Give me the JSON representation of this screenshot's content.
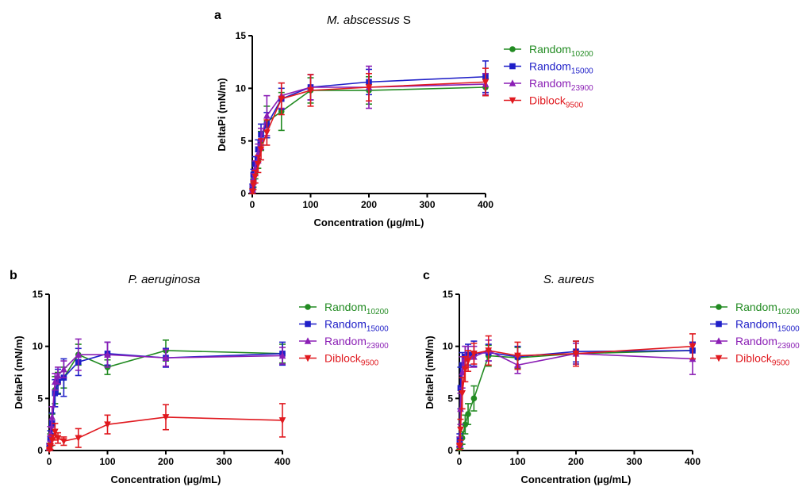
{
  "chart_data": [
    {
      "type": "line",
      "panel_label": "a",
      "title": "M. abscessus S",
      "title_italic": "M. abscessus",
      "title_rest": " S",
      "xlabel": "Concentration (µg/mL)",
      "ylabel": "DeltaPi (mN/m)",
      "xlim": [
        0,
        400
      ],
      "ylim": [
        0,
        15
      ],
      "xticks": [
        0,
        100,
        200,
        300,
        400
      ],
      "yticks": [
        0,
        5,
        10,
        15
      ],
      "grid": false,
      "legend_position": "right",
      "series": [
        {
          "name": "Random10200",
          "base": "Random",
          "sub": "10200",
          "color": "#228b22",
          "marker": "circle",
          "x": [
            0.5,
            2,
            5,
            10,
            15,
            25,
            50,
            100,
            200,
            400
          ],
          "y": [
            0.3,
            1.0,
            2.0,
            3.2,
            5.0,
            6.8,
            7.8,
            9.8,
            9.8,
            10.1
          ],
          "err": [
            0.2,
            0.4,
            0.6,
            0.8,
            0.9,
            1.5,
            1.8,
            1.2,
            1.3,
            0.8
          ]
        },
        {
          "name": "Random15000",
          "base": "Random",
          "sub": "15000",
          "color": "#1f1fc8",
          "marker": "square",
          "x": [
            0.5,
            2,
            5,
            10,
            15,
            25,
            50,
            100,
            200,
            400
          ],
          "y": [
            0.6,
            1.8,
            2.8,
            4.2,
            5.6,
            6.5,
            9.0,
            10.1,
            10.6,
            11.1
          ],
          "err": [
            0.3,
            0.5,
            0.7,
            0.9,
            1.0,
            1.2,
            1.0,
            1.2,
            1.2,
            1.5
          ]
        },
        {
          "name": "Random23900",
          "base": "Random",
          "sub": "23900",
          "color": "#8b1fb5",
          "marker": "triangle-up",
          "x": [
            0.5,
            2,
            5,
            10,
            15,
            25,
            50,
            100,
            200,
            400
          ],
          "y": [
            0.4,
            1.4,
            2.4,
            3.8,
            5.2,
            7.4,
            9.3,
            10.1,
            10.1,
            10.4
          ],
          "err": [
            0.3,
            0.5,
            0.7,
            0.9,
            1.0,
            1.9,
            1.2,
            1.2,
            2.0,
            1.0
          ]
        },
        {
          "name": "Diblock9500",
          "base": "Diblock",
          "sub": "9500",
          "color": "#e0191f",
          "marker": "triangle-down",
          "x": [
            0.5,
            2,
            5,
            10,
            15,
            25,
            50,
            100,
            200,
            400
          ],
          "y": [
            0.2,
            0.8,
            1.6,
            2.8,
            4.2,
            5.8,
            9.0,
            9.8,
            10.1,
            10.6
          ],
          "err": [
            0.2,
            0.4,
            0.6,
            0.8,
            1.0,
            1.2,
            1.5,
            1.5,
            1.3,
            1.3
          ]
        }
      ]
    },
    {
      "type": "line",
      "panel_label": "b",
      "title": "P. aeruginosa",
      "title_italic": "P. aeruginosa",
      "title_rest": "",
      "xlabel": "Concentration (µg/mL)",
      "ylabel": "DeltaPi (mN/m)",
      "xlim": [
        0,
        400
      ],
      "ylim": [
        0,
        15
      ],
      "xticks": [
        0,
        100,
        200,
        300,
        400
      ],
      "yticks": [
        0,
        5,
        10,
        15
      ],
      "grid": false,
      "legend_position": "right",
      "series": [
        {
          "name": "Random10200",
          "base": "Random",
          "sub": "10200",
          "color": "#228b22",
          "marker": "circle",
          "x": [
            0.5,
            2,
            5,
            10,
            15,
            25,
            50,
            100,
            200,
            400
          ],
          "y": [
            0.2,
            1.0,
            2.5,
            5.8,
            6.5,
            7.0,
            9.2,
            8.0,
            9.6,
            9.3
          ],
          "err": [
            0.2,
            0.6,
            1.0,
            1.3,
            1.0,
            1.0,
            1.0,
            0.7,
            1.0,
            0.9
          ]
        },
        {
          "name": "Random15000",
          "base": "Random",
          "sub": "15000",
          "color": "#1f1fc8",
          "marker": "square",
          "x": [
            0.5,
            2,
            5,
            10,
            15,
            25,
            50,
            100,
            200,
            400
          ],
          "y": [
            0.4,
            1.2,
            2.6,
            5.5,
            6.6,
            7.0,
            8.5,
            9.3,
            8.9,
            9.3
          ],
          "err": [
            0.3,
            0.7,
            1.0,
            1.3,
            1.2,
            1.8,
            1.3,
            1.1,
            0.9,
            1.1
          ]
        },
        {
          "name": "Random23900",
          "base": "Random",
          "sub": "23900",
          "color": "#8b1fb5",
          "marker": "triangle-up",
          "x": [
            0.5,
            2,
            5,
            10,
            15,
            25,
            50,
            100,
            200,
            400
          ],
          "y": [
            0.3,
            1.6,
            3.2,
            6.6,
            7.2,
            7.8,
            9.2,
            9.2,
            8.9,
            9.1
          ],
          "err": [
            0.3,
            0.7,
            1.0,
            0.8,
            0.8,
            0.8,
            1.5,
            1.2,
            0.8,
            0.8
          ]
        },
        {
          "name": "Diblock9500",
          "base": "Diblock",
          "sub": "9500",
          "color": "#e0191f",
          "marker": "triangle-down",
          "x": [
            0.5,
            2,
            5,
            10,
            15,
            25,
            50,
            100,
            200,
            400
          ],
          "y": [
            0.1,
            0.4,
            1.0,
            1.8,
            1.2,
            0.9,
            1.2,
            2.5,
            3.2,
            2.9
          ],
          "err": [
            0.1,
            0.3,
            0.5,
            0.8,
            0.5,
            0.4,
            0.9,
            0.9,
            1.2,
            1.6
          ]
        }
      ]
    },
    {
      "type": "line",
      "panel_label": "c",
      "title": "S. aureus",
      "title_italic": "S. aureus",
      "title_rest": "",
      "xlabel": "Concentration (µg/mL)",
      "ylabel": "DeltaPi (mN/m)",
      "xlim": [
        0,
        400
      ],
      "ylim": [
        0,
        15
      ],
      "xticks": [
        0,
        100,
        200,
        300,
        400
      ],
      "yticks": [
        0,
        5,
        10,
        15
      ],
      "grid": false,
      "legend_position": "right",
      "series": [
        {
          "name": "Random10200",
          "base": "Random",
          "sub": "10200",
          "color": "#228b22",
          "marker": "circle",
          "x": [
            0.5,
            2,
            5,
            10,
            15,
            25,
            50,
            100,
            200,
            400
          ],
          "y": [
            0.2,
            0.6,
            1.2,
            2.5,
            3.5,
            5.0,
            9.1,
            8.9,
            9.3,
            9.6
          ],
          "err": [
            0.1,
            0.4,
            0.6,
            0.9,
            1.0,
            1.2,
            1.0,
            1.0,
            1.0,
            0.8
          ]
        },
        {
          "name": "Random15000",
          "base": "Random",
          "sub": "15000",
          "color": "#1f1fc8",
          "marker": "square",
          "x": [
            0.5,
            2,
            5,
            10,
            15,
            25,
            50,
            100,
            200,
            400
          ],
          "y": [
            1.0,
            6.0,
            8.2,
            9.0,
            9.2,
            9.3,
            9.4,
            9.0,
            9.5,
            9.6
          ],
          "err": [
            0.6,
            2.0,
            1.2,
            1.0,
            1.0,
            1.2,
            0.8,
            1.0,
            1.0,
            0.8
          ]
        },
        {
          "name": "Random23900",
          "base": "Random",
          "sub": "23900",
          "color": "#8b1fb5",
          "marker": "triangle-up",
          "x": [
            0.5,
            2,
            5,
            10,
            15,
            25,
            50,
            100,
            200,
            400
          ],
          "y": [
            0.8,
            4.0,
            7.5,
            8.8,
            9.0,
            9.0,
            9.6,
            8.2,
            9.3,
            8.8
          ],
          "err": [
            0.5,
            1.5,
            1.5,
            1.2,
            1.0,
            1.0,
            1.0,
            0.8,
            1.0,
            1.5
          ]
        },
        {
          "name": "Diblock9500",
          "base": "Diblock",
          "sub": "9500",
          "color": "#e0191f",
          "marker": "triangle-down",
          "x": [
            0.5,
            2,
            5,
            10,
            15,
            25,
            50,
            100,
            200,
            400
          ],
          "y": [
            0.4,
            2.0,
            5.5,
            7.8,
            8.6,
            9.3,
            9.6,
            9.1,
            9.3,
            10.0
          ],
          "err": [
            0.3,
            1.0,
            1.5,
            1.2,
            1.0,
            1.0,
            1.4,
            1.3,
            1.2,
            1.2
          ]
        }
      ]
    }
  ]
}
